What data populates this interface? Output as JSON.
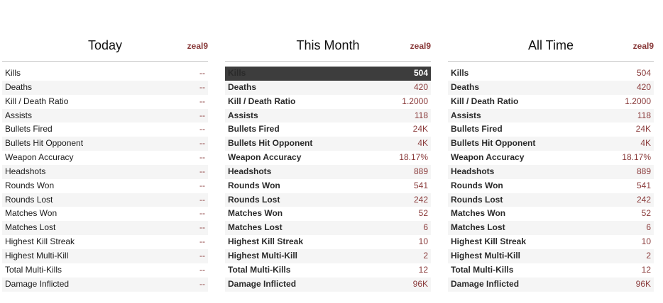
{
  "panels": [
    {
      "title": "Today",
      "user": "zeal9",
      "rows": [
        {
          "label": "Kills",
          "value": "--"
        },
        {
          "label": "Deaths",
          "value": "--"
        },
        {
          "label": "Kill / Death Ratio",
          "value": "--"
        },
        {
          "label": "Assists",
          "value": "--"
        },
        {
          "label": "Bullets Fired",
          "value": "--"
        },
        {
          "label": "Bullets Hit Opponent",
          "value": "--"
        },
        {
          "label": "Weapon Accuracy",
          "value": "--"
        },
        {
          "label": "Headshots",
          "value": "--"
        },
        {
          "label": "Rounds Won",
          "value": "--"
        },
        {
          "label": "Rounds Lost",
          "value": "--"
        },
        {
          "label": "Matches Won",
          "value": "--"
        },
        {
          "label": "Matches Lost",
          "value": "--"
        },
        {
          "label": "Highest Kill Streak",
          "value": "--"
        },
        {
          "label": "Highest Multi-Kill",
          "value": "--"
        },
        {
          "label": "Total Multi-Kills",
          "value": "--"
        },
        {
          "label": "Damage Inflicted",
          "value": "--"
        }
      ]
    },
    {
      "title": "This Month",
      "user": "zeal9",
      "rows": [
        {
          "label": "Kills",
          "value": "504"
        },
        {
          "label": "Deaths",
          "value": "420"
        },
        {
          "label": "Kill / Death Ratio",
          "value": "1.2000"
        },
        {
          "label": "Assists",
          "value": "118"
        },
        {
          "label": "Bullets Fired",
          "value": "24K"
        },
        {
          "label": "Bullets Hit Opponent",
          "value": "4K"
        },
        {
          "label": "Weapon Accuracy",
          "value": "18.17%"
        },
        {
          "label": "Headshots",
          "value": "889"
        },
        {
          "label": "Rounds Won",
          "value": "541"
        },
        {
          "label": "Rounds Lost",
          "value": "242"
        },
        {
          "label": "Matches Won",
          "value": "52"
        },
        {
          "label": "Matches Lost",
          "value": "6"
        },
        {
          "label": "Highest Kill Streak",
          "value": "10"
        },
        {
          "label": "Highest Multi-Kill",
          "value": "2"
        },
        {
          "label": "Total Multi-Kills",
          "value": "12"
        },
        {
          "label": "Damage Inflicted",
          "value": "96K"
        }
      ]
    },
    {
      "title": "All Time",
      "user": "zeal9",
      "rows": [
        {
          "label": "Kills",
          "value": "504"
        },
        {
          "label": "Deaths",
          "value": "420"
        },
        {
          "label": "Kill / Death Ratio",
          "value": "1.2000"
        },
        {
          "label": "Assists",
          "value": "118"
        },
        {
          "label": "Bullets Fired",
          "value": "24K"
        },
        {
          "label": "Bullets Hit Opponent",
          "value": "4K"
        },
        {
          "label": "Weapon Accuracy",
          "value": "18.17%"
        },
        {
          "label": "Headshots",
          "value": "889"
        },
        {
          "label": "Rounds Won",
          "value": "541"
        },
        {
          "label": "Rounds Lost",
          "value": "242"
        },
        {
          "label": "Matches Won",
          "value": "52"
        },
        {
          "label": "Matches Lost",
          "value": "6"
        },
        {
          "label": "Highest Kill Streak",
          "value": "10"
        },
        {
          "label": "Highest Multi-Kill",
          "value": "2"
        },
        {
          "label": "Total Multi-Kills",
          "value": "12"
        },
        {
          "label": "Damage Inflicted",
          "value": "96K"
        }
      ]
    }
  ],
  "colors": {
    "value_text": "#8a3b3b",
    "highlight_bg": "#3d3d3d",
    "zebra_bg": "#f5f5f5"
  }
}
